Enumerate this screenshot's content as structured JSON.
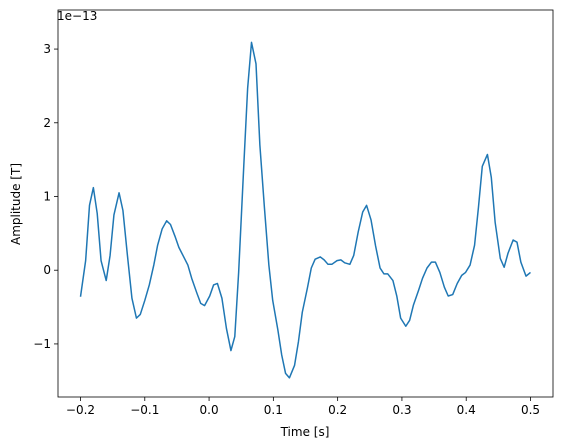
{
  "chart_data": {
    "type": "line",
    "x_label": "Time [s]",
    "y_label": "Amplitude [T]",
    "y_offset_label": "1e−13",
    "x": [
      -0.2,
      -0.192,
      -0.186,
      -0.18,
      -0.174,
      -0.168,
      -0.16,
      -0.154,
      -0.148,
      -0.14,
      -0.134,
      -0.127,
      -0.12,
      -0.113,
      -0.107,
      -0.1,
      -0.093,
      -0.086,
      -0.08,
      -0.073,
      -0.066,
      -0.06,
      -0.053,
      -0.047,
      -0.04,
      -0.033,
      -0.027,
      -0.019,
      -0.013,
      -0.007,
      0.001,
      0.007,
      0.013,
      0.02,
      0.027,
      0.034,
      0.04,
      0.046,
      0.054,
      0.06,
      0.066,
      0.073,
      0.079,
      0.086,
      0.093,
      0.099,
      0.107,
      0.113,
      0.119,
      0.125,
      0.133,
      0.139,
      0.145,
      0.153,
      0.159,
      0.165,
      0.173,
      0.179,
      0.185,
      0.191,
      0.199,
      0.205,
      0.211,
      0.219,
      0.225,
      0.232,
      0.239,
      0.245,
      0.252,
      0.259,
      0.266,
      0.272,
      0.278,
      0.286,
      0.292,
      0.298,
      0.306,
      0.312,
      0.318,
      0.326,
      0.332,
      0.339,
      0.346,
      0.352,
      0.359,
      0.366,
      0.372,
      0.379,
      0.386,
      0.393,
      0.399,
      0.406,
      0.413,
      0.419,
      0.425,
      0.433,
      0.439,
      0.445,
      0.453,
      0.459,
      0.465,
      0.473,
      0.479,
      0.485,
      0.493,
      0.5
    ],
    "series": [
      {
        "name": "Amplitude",
        "color": "#1f77b4",
        "values": [
          -0.36,
          0.13,
          0.88,
          1.12,
          0.77,
          0.13,
          -0.14,
          0.2,
          0.75,
          1.05,
          0.81,
          0.2,
          -0.38,
          -0.65,
          -0.6,
          -0.41,
          -0.2,
          0.07,
          0.34,
          0.56,
          0.67,
          0.62,
          0.46,
          0.31,
          0.19,
          0.07,
          -0.11,
          -0.31,
          -0.45,
          -0.48,
          -0.35,
          -0.2,
          -0.18,
          -0.38,
          -0.79,
          -1.09,
          -0.9,
          -0.03,
          1.42,
          2.47,
          3.09,
          2.8,
          1.7,
          0.86,
          0.07,
          -0.41,
          -0.81,
          -1.15,
          -1.4,
          -1.46,
          -1.29,
          -0.97,
          -0.57,
          -0.24,
          0.03,
          0.15,
          0.18,
          0.14,
          0.08,
          0.08,
          0.13,
          0.14,
          0.1,
          0.08,
          0.2,
          0.52,
          0.79,
          0.88,
          0.68,
          0.33,
          0.03,
          -0.05,
          -0.05,
          -0.14,
          -0.35,
          -0.65,
          -0.76,
          -0.68,
          -0.47,
          -0.27,
          -0.11,
          0.03,
          0.11,
          0.11,
          -0.03,
          -0.23,
          -0.35,
          -0.33,
          -0.18,
          -0.07,
          -0.03,
          0.07,
          0.34,
          0.85,
          1.41,
          1.57,
          1.26,
          0.65,
          0.16,
          0.04,
          0.23,
          0.41,
          0.38,
          0.11,
          -0.08,
          -0.03
        ]
      }
    ],
    "xlim": [
      -0.235,
      0.535
    ],
    "ylim": [
      -1.72,
      3.53
    ],
    "xticks": [
      {
        "value": -0.2,
        "label": "−0.2"
      },
      {
        "value": -0.1,
        "label": "−0.1"
      },
      {
        "value": 0,
        "label": "0.0"
      },
      0.1,
      0.2,
      0.3,
      0.4,
      0.5
    ],
    "yticks": [
      {
        "value": -1,
        "label": "−1"
      },
      0,
      1,
      2,
      3
    ]
  }
}
